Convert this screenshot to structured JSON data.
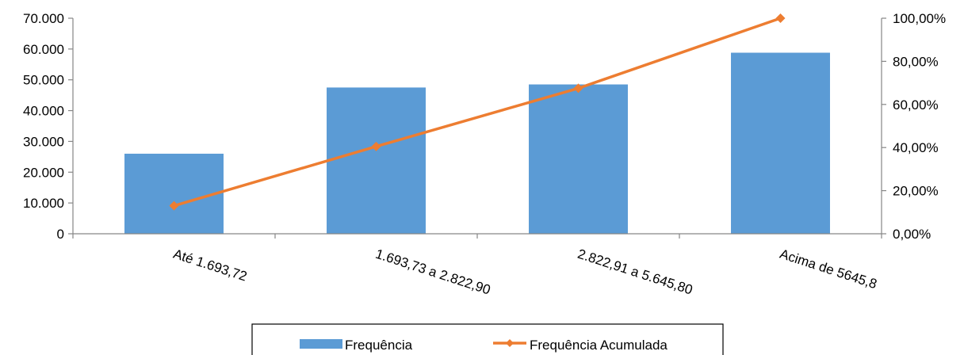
{
  "chart_data": {
    "type": "bar",
    "categories": [
      "Até 1.693,72",
      "1.693,73 a 2.822,90",
      "2.822,91 a 5.645,80",
      "Acima de 5645,8"
    ],
    "series": [
      {
        "name": "Frequência",
        "type": "bar",
        "axis": "left",
        "values": [
          26000,
          47500,
          48500,
          58800
        ],
        "color": "#5b9bd5"
      },
      {
        "name": "Frequência Acumulada",
        "type": "line",
        "axis": "right",
        "values": [
          0.13,
          0.405,
          0.675,
          1.0
        ],
        "color": "#ed7d31"
      }
    ],
    "y_left": {
      "lim": [
        0,
        70000
      ],
      "ticks": [
        "0",
        "10.000",
        "20.000",
        "30.000",
        "40.000",
        "50.000",
        "60.000",
        "70.000"
      ]
    },
    "y_right": {
      "lim": [
        0,
        1.0
      ],
      "ticks": [
        "0,00%",
        "20,00%",
        "40,00%",
        "60,00%",
        "80,00%",
        "100,00%"
      ]
    },
    "grid": false,
    "legend": "bottom",
    "title": "",
    "xlabel": "",
    "ylabel": ""
  }
}
